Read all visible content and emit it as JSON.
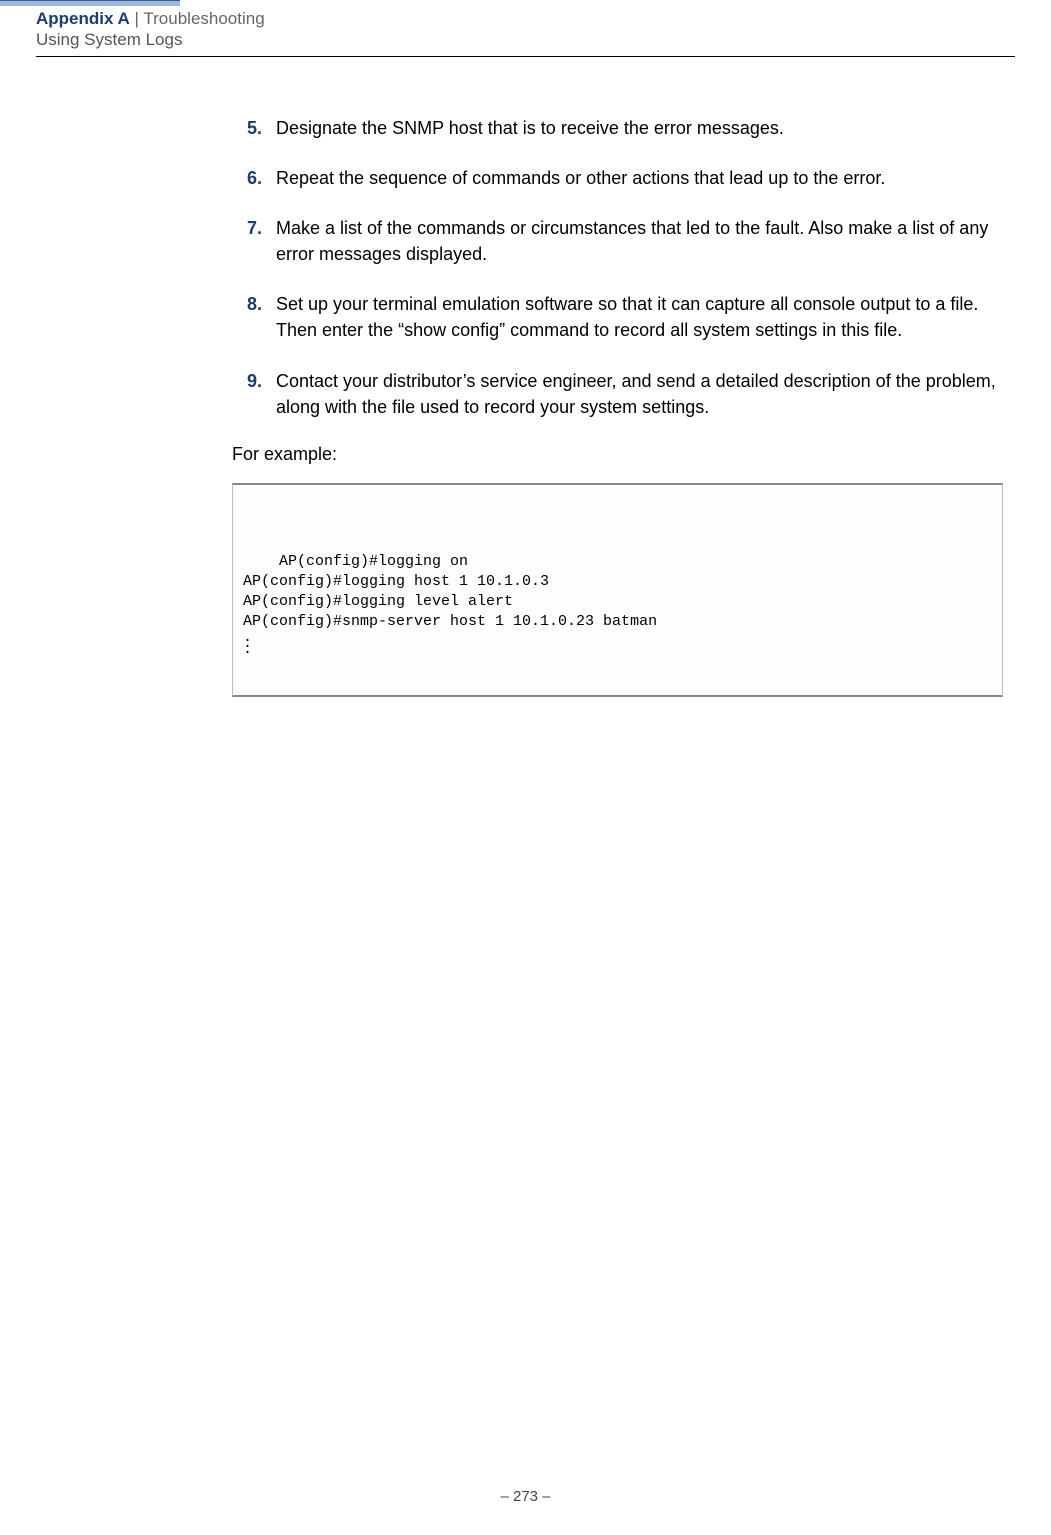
{
  "header": {
    "appendix": "Appendix A",
    "separator": "  |  ",
    "section": "Troubleshooting",
    "subtitle": "Using System Logs"
  },
  "steps": [
    {
      "num": "5.",
      "text": "Designate the SNMP host that is to receive the error messages."
    },
    {
      "num": "6.",
      "text": "Repeat the sequence of commands or other actions that lead up to the error."
    },
    {
      "num": "7.",
      "text": "Make a list of the commands or circumstances that led to the fault. Also make a list of any error messages displayed."
    },
    {
      "num": "8.",
      "text": "Set up your terminal emulation software so that it can capture all console output to a file. Then enter the “show config” command to record all system settings in this file."
    },
    {
      "num": "9.",
      "text": "Contact your distributor’s service engineer, and send a detailed description of the problem, along with the file used to record your system settings."
    }
  ],
  "for_example": "For example:",
  "code": "AP(config)#logging on\nAP(config)#logging host 1 10.1.0.3\nAP(config)#logging level alert\nAP(config)#snmp-server host 1 10.1.0.23 batman",
  "page_number": "–  273  –",
  "colors": {
    "accent_blue": "#183c73",
    "header_bar": "#9db8d9",
    "grey_text": "#666666"
  }
}
